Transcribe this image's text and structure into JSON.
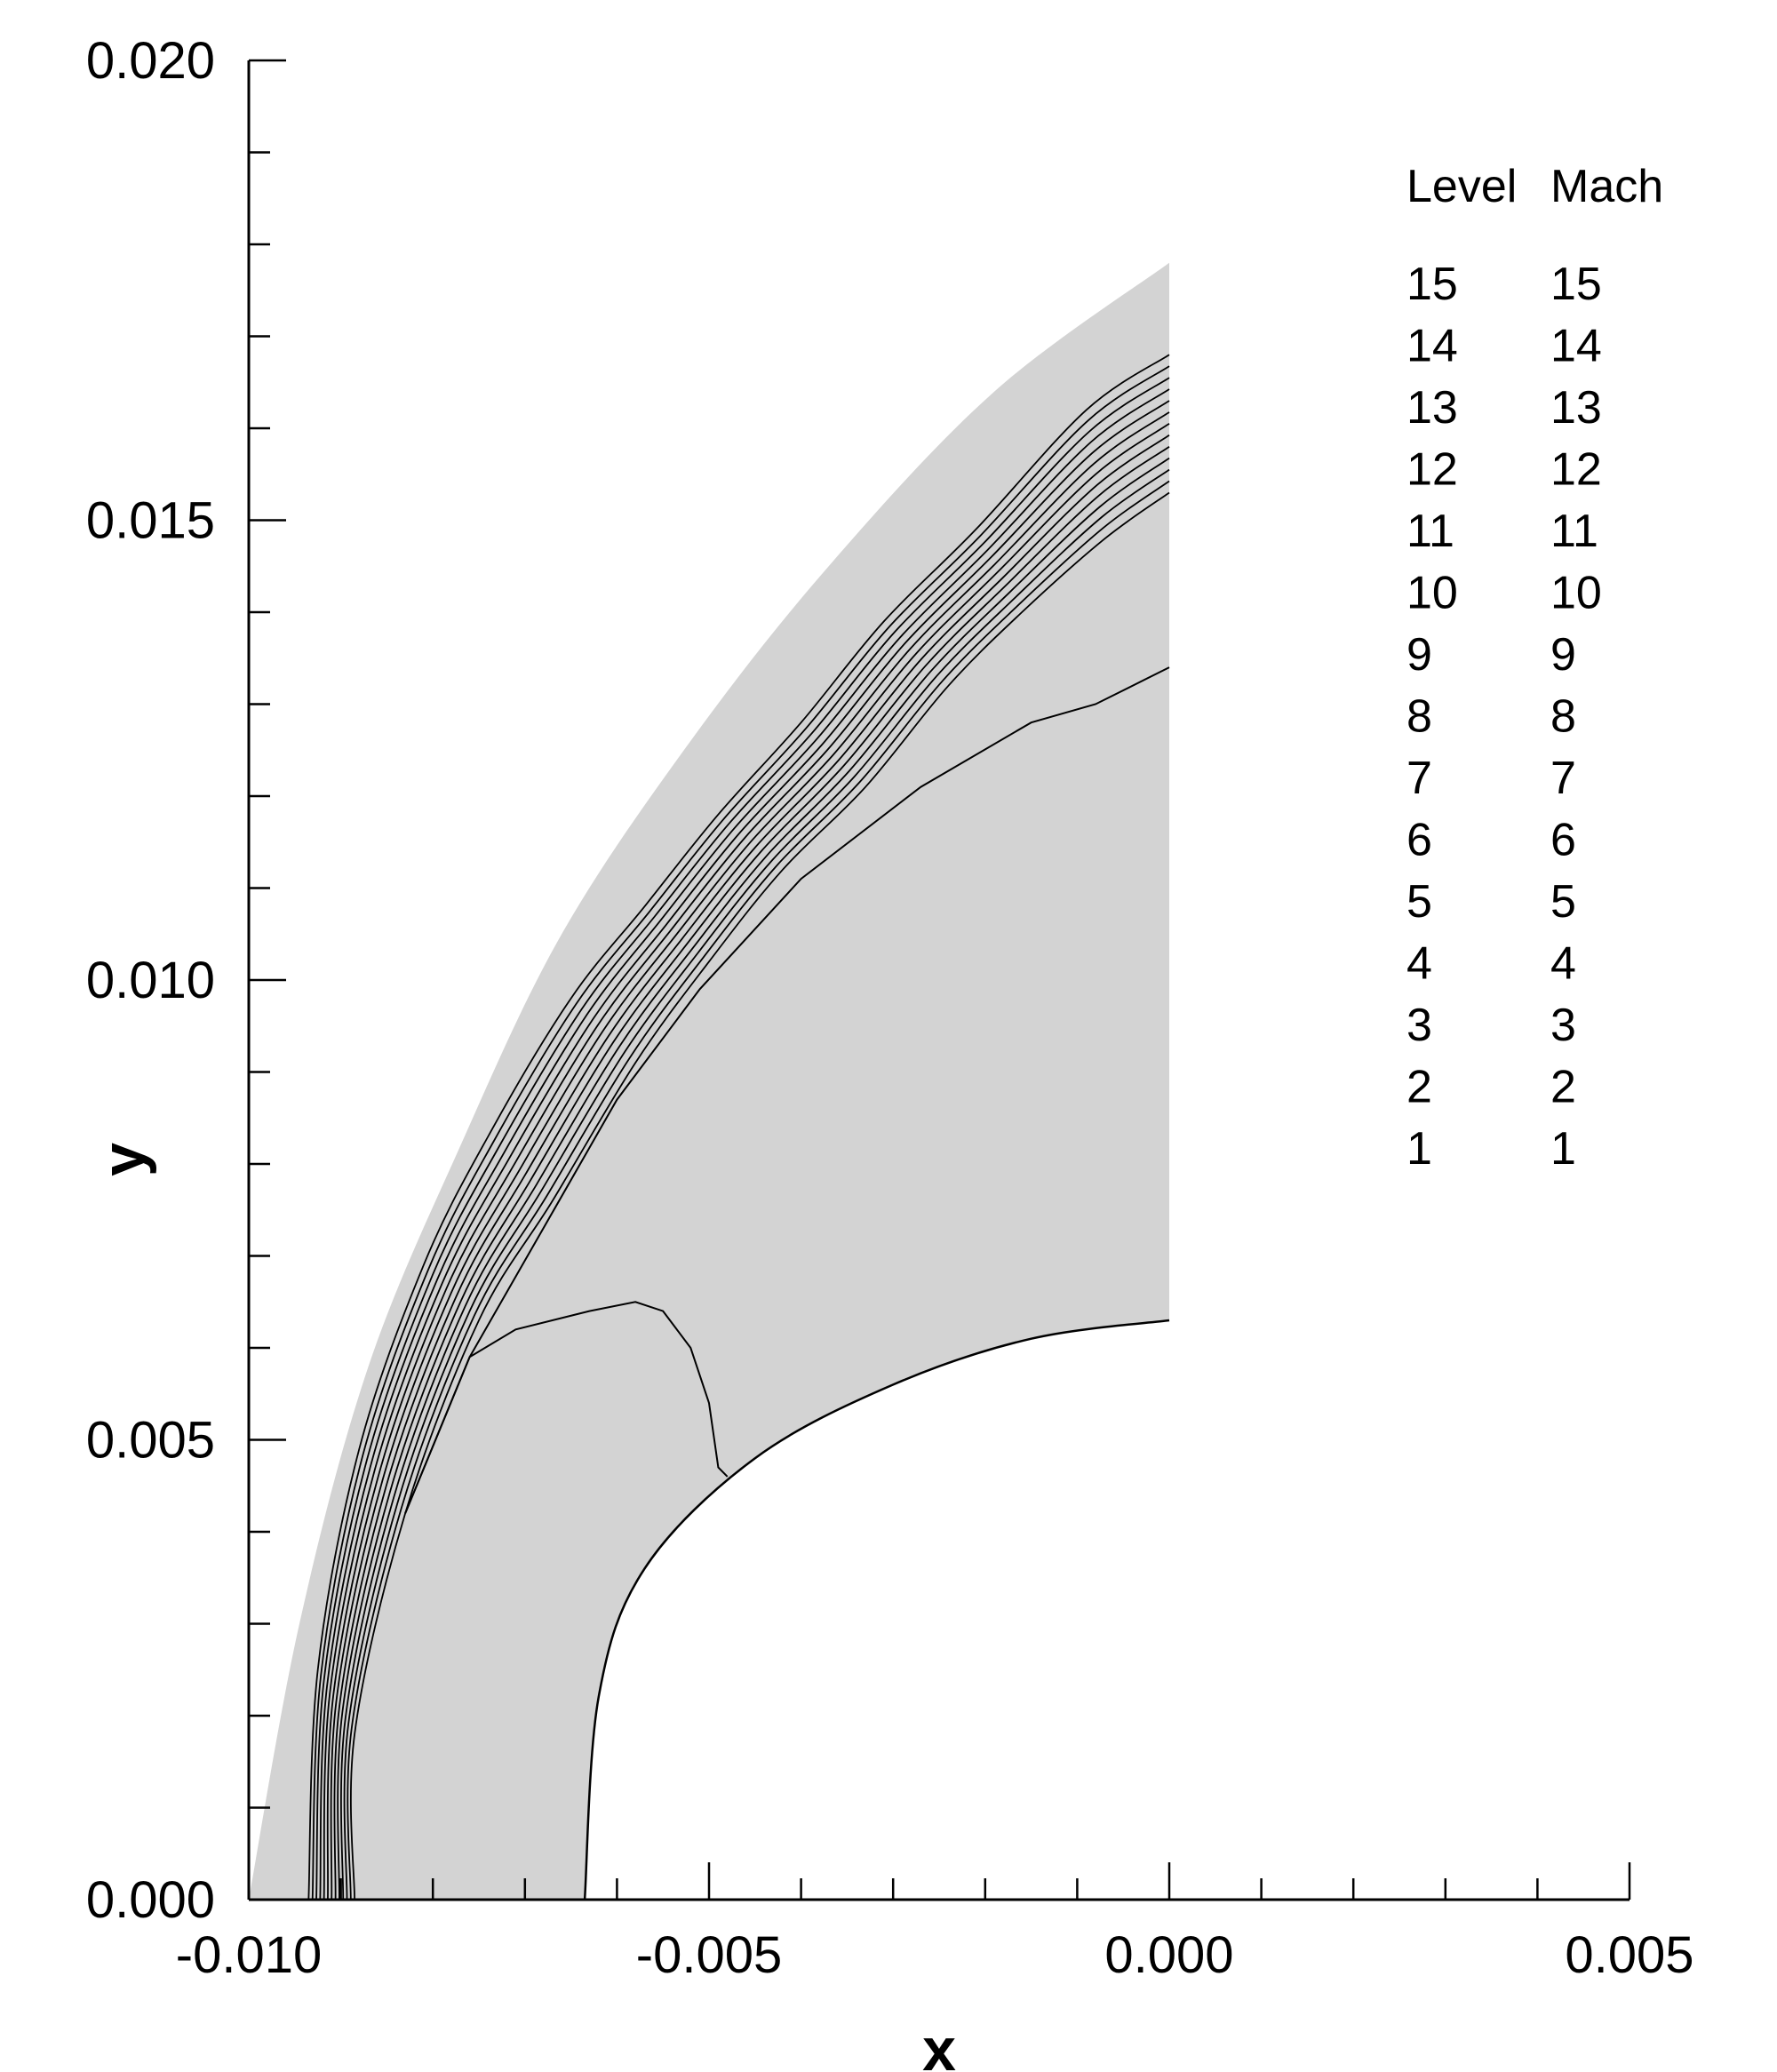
{
  "chart_data": {
    "type": "contour",
    "xlabel": "x",
    "ylabel": "y",
    "xlim": [
      -0.01,
      0.005
    ],
    "ylim": [
      0.0,
      0.02
    ],
    "x_ticks": [
      "-0.010",
      "-0.005",
      "0.000",
      "0.005"
    ],
    "y_ticks": [
      "0.000",
      "0.005",
      "0.010",
      "0.015",
      "0.020"
    ],
    "grid": false,
    "legend_position": "top-right",
    "legend": {
      "header": [
        "Level",
        "Mach"
      ],
      "levels": [
        "15",
        "14",
        "13",
        "12",
        "11",
        "10",
        "9",
        "8",
        "7",
        "6",
        "5",
        "4",
        "3",
        "2",
        "1"
      ],
      "values": [
        "15",
        "14",
        "13",
        "12",
        "11",
        "10",
        "9",
        "8",
        "7",
        "6",
        "5",
        "4",
        "3",
        "2",
        "1"
      ]
    },
    "domain": {
      "outer_boundary": [
        [
          -0.01,
          0.0
        ],
        [
          -0.00945,
          0.003
        ],
        [
          -0.0087,
          0.0058
        ],
        [
          -0.0077,
          0.0082
        ],
        [
          -0.0066,
          0.0105
        ],
        [
          -0.0052,
          0.0126
        ],
        [
          -0.0037,
          0.0145
        ],
        [
          -0.0019,
          0.0164
        ],
        [
          0.0,
          0.0178
        ]
      ],
      "body_boundary": [
        [
          -0.00635,
          0.0
        ],
        [
          -0.0062,
          0.0022
        ],
        [
          -0.0057,
          0.0036
        ],
        [
          -0.0045,
          0.0048
        ],
        [
          -0.003,
          0.0056
        ],
        [
          -0.0015,
          0.0061
        ],
        [
          0.0,
          0.0063
        ]
      ],
      "fill_color": "#d3d3d3"
    },
    "shock_contours": {
      "count": 13,
      "base": [
        [
          -0.00915,
          0.0
        ],
        [
          -0.0091,
          0.0022
        ],
        [
          -0.0087,
          0.0046
        ],
        [
          -0.0079,
          0.0066
        ],
        [
          -0.0071,
          0.008
        ],
        [
          -0.0062,
          0.0095
        ],
        [
          -0.0054,
          0.0106
        ],
        [
          -0.0046,
          0.0116
        ],
        [
          -0.0037,
          0.0125
        ],
        [
          -0.0028,
          0.0135
        ],
        [
          -0.0018,
          0.0143
        ],
        [
          -0.0009,
          0.0151
        ],
        [
          0.0,
          0.016
        ]
      ],
      "upstream_edge": [
        [
          -0.00935,
          0.0
        ],
        [
          -0.00925,
          0.0025
        ],
        [
          -0.0088,
          0.0049
        ],
        [
          -0.0081,
          0.0069
        ],
        [
          -0.0074,
          0.0083
        ],
        [
          -0.0065,
          0.0098
        ],
        [
          -0.0057,
          0.0108
        ],
        [
          -0.0049,
          0.0118
        ],
        [
          -0.004,
          0.0128
        ],
        [
          -0.0031,
          0.0139
        ],
        [
          -0.0021,
          0.0149
        ],
        [
          -0.0009,
          0.0162
        ],
        [
          0.0,
          0.0168
        ]
      ],
      "downstream_edge": [
        [
          -0.00885,
          0.0
        ],
        [
          -0.00885,
          0.0018
        ],
        [
          -0.0083,
          0.0042
        ],
        [
          -0.0075,
          0.0063
        ],
        [
          -0.0067,
          0.0076
        ],
        [
          -0.0058,
          0.0091
        ],
        [
          -0.005,
          0.0102
        ],
        [
          -0.0042,
          0.0112
        ],
        [
          -0.0033,
          0.0121
        ],
        [
          -0.0024,
          0.0132
        ],
        [
          -0.0016,
          0.014
        ],
        [
          -0.0007,
          0.0148
        ],
        [
          0.0,
          0.0153
        ]
      ]
    },
    "contour_lines": [
      {
        "name": "sonic-line",
        "points": [
          [
            -0.0083,
            0.0042
          ],
          [
            -0.0076,
            0.0059
          ],
          [
            -0.0071,
            0.0062
          ],
          [
            -0.0063,
            0.0064
          ],
          [
            -0.0058,
            0.0065
          ],
          [
            -0.0055,
            0.0064
          ],
          [
            -0.0052,
            0.006
          ],
          [
            -0.005,
            0.0054
          ],
          [
            -0.0049,
            0.0047
          ],
          [
            -0.0048,
            0.0046
          ]
        ]
      },
      {
        "name": "inner-contour",
        "points": [
          [
            -0.0083,
            0.0042
          ],
          [
            -0.0076,
            0.0059
          ],
          [
            -0.0068,
            0.0073
          ],
          [
            -0.006,
            0.0087
          ],
          [
            -0.0051,
            0.0099
          ],
          [
            -0.004,
            0.0111
          ],
          [
            -0.0027,
            0.0121
          ],
          [
            -0.0015,
            0.0128
          ],
          [
            -0.0008,
            0.013
          ],
          [
            0.0,
            0.0134
          ]
        ]
      }
    ]
  }
}
